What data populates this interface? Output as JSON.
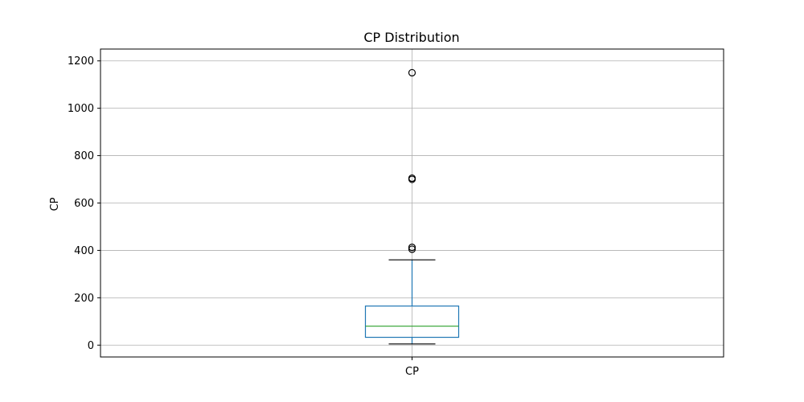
{
  "chart_data": {
    "type": "box",
    "title": "CP Distribution",
    "xlabel": "",
    "ylabel": "CP",
    "categories": [
      "CP"
    ],
    "ylim": [
      -50,
      1250
    ],
    "yticks": [
      0,
      200,
      400,
      600,
      800,
      1000,
      1200
    ],
    "grid": true,
    "boxes": [
      {
        "category": "CP",
        "whisker_low": 5,
        "q1": 33,
        "median": 80,
        "q3": 165,
        "whisker_high": 360,
        "outliers": [
          405,
          413,
          700,
          705,
          1150
        ]
      }
    ],
    "colors": {
      "box": "#1f77b4",
      "whisker": "#1f77b4",
      "median": "#2ca02c",
      "cap": "#000000",
      "outlier": "#000000",
      "grid": "#b0b0b0"
    }
  }
}
